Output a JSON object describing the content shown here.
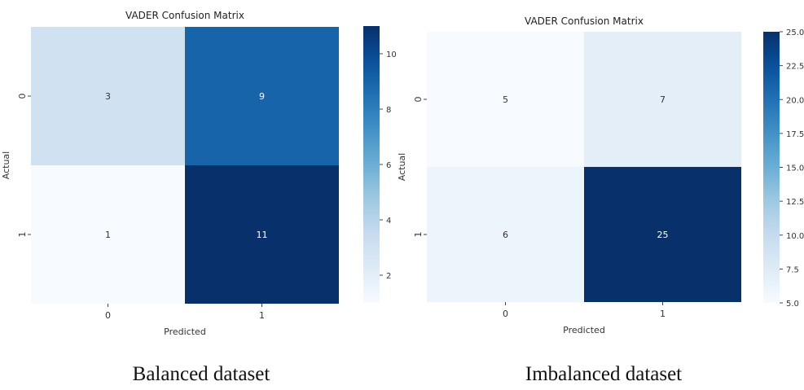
{
  "chart_data": [
    {
      "type": "heatmap",
      "title": "VADER Confusion Matrix",
      "xlabel": "Predicted",
      "ylabel": "Actual",
      "x_categories": [
        "0",
        "1"
      ],
      "y_categories": [
        "0",
        "1"
      ],
      "values": [
        [
          3,
          9
        ],
        [
          1,
          11
        ]
      ],
      "colormap": "Blues",
      "color_range": [
        1,
        11
      ],
      "colorbar_ticks": [
        "2",
        "4",
        "6",
        "8",
        "10"
      ],
      "caption": "Balanced dataset"
    },
    {
      "type": "heatmap",
      "title": "VADER Confusion Matrix",
      "xlabel": "Predicted",
      "ylabel": "Actual",
      "x_categories": [
        "0",
        "1"
      ],
      "y_categories": [
        "0",
        "1"
      ],
      "values": [
        [
          5,
          7
        ],
        [
          6,
          25
        ]
      ],
      "colormap": "Blues",
      "color_range": [
        5,
        25
      ],
      "colorbar_ticks": [
        "5.0",
        "7.5",
        "10.0",
        "12.5",
        "15.0",
        "17.5",
        "20.0",
        "22.5",
        "25.0"
      ],
      "caption": "Imbalanced dataset"
    }
  ]
}
